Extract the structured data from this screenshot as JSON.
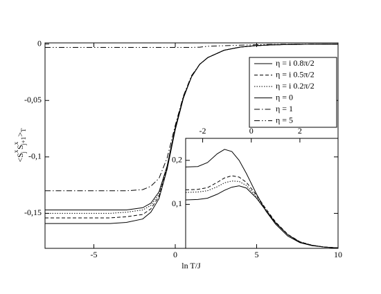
{
  "chart_data": [
    {
      "type": "line",
      "xlabel": "ln T/J",
      "ylabel": [
        "<S",
        "x",
        "j",
        " S",
        "x",
        "j+1",
        ">",
        "T"
      ],
      "xlim": [
        -8,
        10
      ],
      "ylim": [
        -0.181,
        0.001
      ],
      "xticks": [
        -5,
        0,
        5,
        10
      ],
      "yticks": [
        0,
        {
          "value": -0.05,
          "label": "-0,05"
        },
        {
          "value": -0.1,
          "label": "-0,1"
        },
        {
          "value": -0.15,
          "label": "-0,15"
        }
      ],
      "legend": "upper right",
      "x": [
        -8,
        -6,
        -4,
        -3,
        -2,
        -1.5,
        -1,
        -0.5,
        0,
        0.5,
        1,
        1.5,
        2,
        3,
        4,
        5,
        6,
        8,
        10
      ],
      "series": [
        {
          "name": "η = i 0.8π/2",
          "color": "#000000",
          "dash": "solid",
          "values": [
            -0.147,
            -0.147,
            -0.147,
            -0.147,
            -0.145,
            -0.141,
            -0.131,
            -0.108,
            -0.074,
            -0.047,
            -0.029,
            -0.018,
            -0.012,
            -0.0055,
            -0.0027,
            -0.0014,
            -0.0007,
            -0.0002,
            -0.0001
          ]
        },
        {
          "name": "η = i 0.5π/2",
          "color": "#000000",
          "dash": "dashed",
          "values": [
            -0.154,
            -0.154,
            -0.154,
            -0.153,
            -0.151,
            -0.146,
            -0.135,
            -0.11,
            -0.075,
            -0.047,
            -0.029,
            -0.018,
            -0.012,
            -0.0055,
            -0.0027,
            -0.0014,
            -0.0007,
            -0.0002,
            -0.0001
          ]
        },
        {
          "name": "η = i 0.2π/2",
          "color": "#000000",
          "dash": "dotted",
          "values": [
            -0.15,
            -0.15,
            -0.15,
            -0.149,
            -0.147,
            -0.143,
            -0.133,
            -0.109,
            -0.075,
            -0.047,
            -0.029,
            -0.018,
            -0.012,
            -0.0055,
            -0.0027,
            -0.0014,
            -0.0007,
            -0.0002,
            -0.0001
          ]
        },
        {
          "name": "η = 0",
          "color": "#000000",
          "dash": "solid",
          "values": [
            -0.159,
            -0.159,
            -0.159,
            -0.158,
            -0.155,
            -0.149,
            -0.137,
            -0.111,
            -0.076,
            -0.048,
            -0.029,
            -0.018,
            -0.012,
            -0.0055,
            -0.0027,
            -0.0014,
            -0.0007,
            -0.0002,
            -0.0001
          ]
        },
        {
          "name": "η = 1",
          "color": "#000000",
          "dash": "dashdot",
          "values": [
            -0.13,
            -0.13,
            -0.13,
            -0.13,
            -0.129,
            -0.126,
            -0.119,
            -0.101,
            -0.072,
            -0.046,
            -0.028,
            -0.018,
            -0.012,
            -0.0055,
            -0.0027,
            -0.0014,
            -0.0007,
            -0.0002,
            -0.0001
          ]
        },
        {
          "name": "η = 5",
          "color": "#000000",
          "dash": "dashdotdot",
          "values": [
            -0.003,
            -0.003,
            -0.003,
            -0.003,
            -0.003,
            -0.003,
            -0.003,
            -0.003,
            -0.003,
            -0.003,
            -0.003,
            -0.0028,
            -0.002,
            -0.0015,
            -0.001,
            -0.0006,
            -0.0003,
            -0.0001,
            0
          ]
        }
      ]
    },
    {
      "type": "line",
      "xlim": [
        -2.7,
        3.57
      ],
      "ylim": [
        0,
        0.25
      ],
      "xticks": [
        -2,
        0,
        2
      ],
      "yticks": [
        {
          "value": 0.2,
          "label": "0,2"
        },
        {
          "value": 0.1,
          "label": "0,1"
        }
      ],
      "x": [
        -2.7,
        -2.2,
        -1.8,
        -1.4,
        -1.1,
        -0.8,
        -0.5,
        -0.2,
        0.2,
        0.6,
        1.0,
        1.5,
        2.0,
        2.5,
        3.0,
        3.57
      ],
      "series": [
        {
          "color": "#000000",
          "dash": "solid",
          "values": [
            0.185,
            0.186,
            0.195,
            0.215,
            0.225,
            0.22,
            0.2,
            0.17,
            0.125,
            0.085,
            0.055,
            0.028,
            0.013,
            0.006,
            0.003,
            0.001
          ]
        },
        {
          "color": "#000000",
          "dash": "dashed",
          "values": [
            0.133,
            0.134,
            0.138,
            0.15,
            0.16,
            0.165,
            0.162,
            0.15,
            0.122,
            0.09,
            0.06,
            0.032,
            0.015,
            0.007,
            0.003,
            0.001
          ]
        },
        {
          "color": "#000000",
          "dash": "dotted",
          "values": [
            0.127,
            0.128,
            0.131,
            0.14,
            0.149,
            0.153,
            0.152,
            0.143,
            0.118,
            0.088,
            0.059,
            0.031,
            0.015,
            0.007,
            0.003,
            0.001
          ]
        },
        {
          "color": "#000000",
          "dash": "solid",
          "values": [
            0.11,
            0.111,
            0.114,
            0.123,
            0.132,
            0.139,
            0.142,
            0.137,
            0.115,
            0.086,
            0.058,
            0.031,
            0.014,
            0.007,
            0.003,
            0.001
          ]
        }
      ]
    }
  ]
}
